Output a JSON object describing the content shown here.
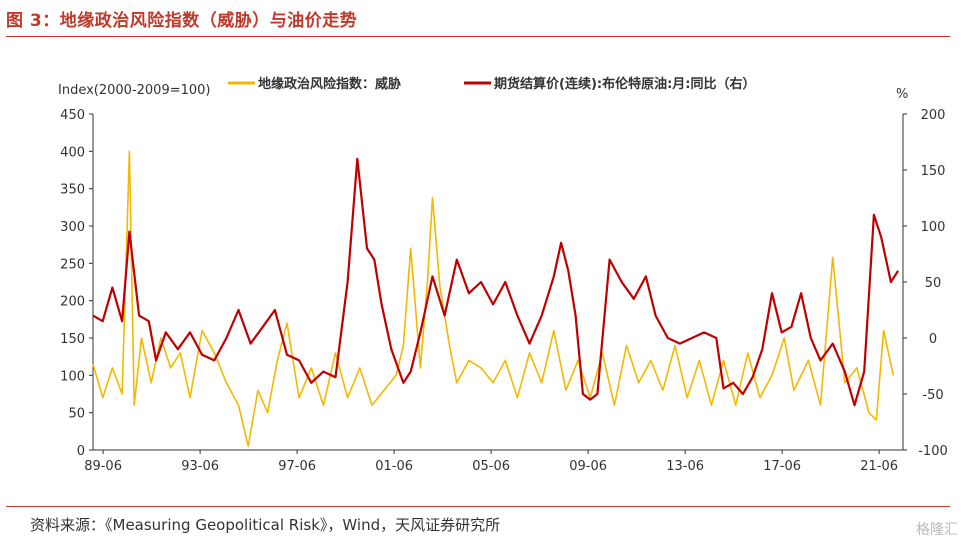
{
  "figure": {
    "title": "图 3：地缘政治风险指数（威胁）与油价走势",
    "source": "资料来源：《Measuring Geopolitical Risk》，Wind，天风证券研究所",
    "watermark": "格隆汇"
  },
  "colors": {
    "gpr": "#f5b800",
    "brent": "#c00000",
    "accent": "#c0392b",
    "axis": "#333333"
  },
  "chart_data": {
    "type": "line",
    "left_axis_label": "Index(2000-2009=100)",
    "right_axis_label": "%",
    "ylim_left": [
      0,
      450
    ],
    "ylim_right": [
      -100,
      200
    ],
    "yticks_left": [
      0,
      50,
      100,
      150,
      200,
      250,
      300,
      350,
      400,
      450
    ],
    "yticks_right": [
      -100,
      -50,
      0,
      50,
      100,
      150,
      200
    ],
    "x_ticks": [
      "89-06",
      "93-06",
      "97-06",
      "01-06",
      "05-06",
      "09-06",
      "13-06",
      "17-06",
      "21-06"
    ],
    "legend_position": "top",
    "series": [
      {
        "name": "地缘政治风险指数：威胁",
        "axis": "left",
        "x": [
          1989.0,
          1989.4,
          1989.8,
          1990.2,
          1990.5,
          1990.7,
          1991.0,
          1991.4,
          1991.8,
          1992.2,
          1992.6,
          1993.0,
          1993.5,
          1994.0,
          1994.5,
          1995.0,
          1995.4,
          1995.8,
          1996.2,
          1996.6,
          1997.0,
          1997.5,
          1998.0,
          1998.5,
          1999.0,
          1999.5,
          2000.0,
          2000.5,
          2001.0,
          2001.5,
          2001.8,
          2002.1,
          2002.5,
          2002.8,
          2003.0,
          2003.3,
          2003.7,
          2004.0,
          2004.5,
          2005.0,
          2005.5,
          2006.0,
          2006.5,
          2007.0,
          2007.5,
          2008.0,
          2008.5,
          2009.0,
          2009.5,
          2010.0,
          2010.5,
          2011.0,
          2011.5,
          2012.0,
          2012.5,
          2013.0,
          2013.5,
          2014.0,
          2014.5,
          2015.0,
          2015.5,
          2016.0,
          2016.5,
          2017.0,
          2017.5,
          2017.9,
          2018.5,
          2019.0,
          2019.5,
          2020.0,
          2020.5,
          2021.0,
          2021.3,
          2021.6,
          2022.0
        ],
        "values": [
          115,
          70,
          110,
          75,
          400,
          60,
          150,
          90,
          150,
          110,
          130,
          70,
          160,
          130,
          90,
          60,
          5,
          80,
          50,
          120,
          170,
          70,
          110,
          60,
          130,
          70,
          110,
          60,
          80,
          100,
          140,
          270,
          110,
          230,
          338,
          220,
          140,
          90,
          120,
          110,
          90,
          120,
          70,
          130,
          90,
          160,
          80,
          120,
          70,
          130,
          60,
          140,
          90,
          120,
          80,
          140,
          70,
          120,
          60,
          120,
          60,
          130,
          70,
          100,
          150,
          80,
          120,
          60,
          258,
          90,
          110,
          50,
          40,
          160,
          100
        ]
      },
      {
        "name": "期货结算价(连续):布伦特原油:月:同比（右）",
        "axis": "right",
        "x": [
          1989.0,
          1989.4,
          1989.8,
          1990.2,
          1990.5,
          1990.9,
          1991.3,
          1991.6,
          1992.0,
          1992.5,
          1993.0,
          1993.5,
          1994.0,
          1994.5,
          1995.0,
          1995.5,
          1996.0,
          1996.5,
          1997.0,
          1997.5,
          1998.0,
          1998.5,
          1999.0,
          1999.5,
          1999.9,
          2000.3,
          2000.6,
          2000.9,
          2001.3,
          2001.8,
          2002.1,
          2002.5,
          2003.0,
          2003.5,
          2004.0,
          2004.5,
          2005.0,
          2005.5,
          2006.0,
          2006.5,
          2007.0,
          2007.5,
          2008.0,
          2008.3,
          2008.6,
          2008.9,
          2009.2,
          2009.5,
          2009.8,
          2010.3,
          2010.8,
          2011.3,
          2011.8,
          2012.2,
          2012.7,
          2013.2,
          2013.7,
          2014.2,
          2014.7,
          2015.0,
          2015.4,
          2015.8,
          2016.2,
          2016.6,
          2017.0,
          2017.4,
          2017.8,
          2018.2,
          2018.6,
          2019.0,
          2019.5,
          2020.0,
          2020.4,
          2020.8,
          2021.2,
          2021.5,
          2021.9,
          2022.2
        ],
        "values": [
          20,
          15,
          45,
          15,
          95,
          20,
          15,
          -20,
          5,
          -10,
          5,
          -15,
          -20,
          0,
          25,
          -5,
          10,
          25,
          -15,
          -20,
          -40,
          -30,
          -35,
          50,
          160,
          80,
          70,
          30,
          -10,
          -40,
          -30,
          5,
          55,
          20,
          70,
          40,
          50,
          30,
          50,
          20,
          -5,
          20,
          55,
          85,
          60,
          20,
          -50,
          -55,
          -50,
          70,
          50,
          35,
          55,
          20,
          0,
          -5,
          0,
          5,
          0,
          -45,
          -40,
          -50,
          -35,
          -10,
          40,
          5,
          10,
          40,
          0,
          -20,
          -5,
          -30,
          -60,
          -30,
          110,
          90,
          50,
          60
        ]
      }
    ]
  }
}
